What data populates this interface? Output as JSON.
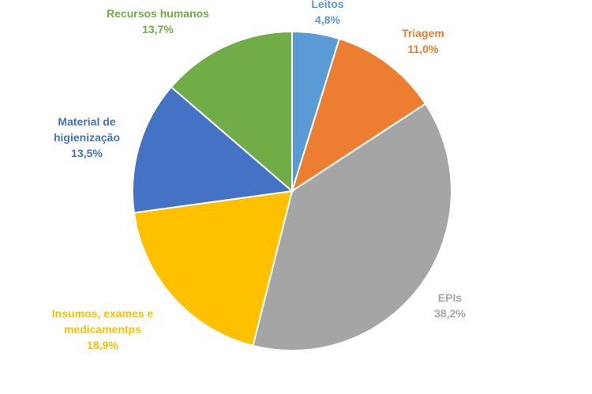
{
  "chart_data": {
    "type": "pie",
    "title": "",
    "slices": [
      {
        "label_lines": [
          "Leitos"
        ],
        "value": 4.8,
        "value_label": "4,8%",
        "color": "#5B9BD5"
      },
      {
        "label_lines": [
          "Triagem"
        ],
        "value": 11.0,
        "value_label": "11,0%",
        "color": "#ED7D31"
      },
      {
        "label_lines": [
          "EPIs"
        ],
        "value": 38.2,
        "value_label": "38,2%",
        "color": "#A5A5A5"
      },
      {
        "label_lines": [
          "Insumos, exames e",
          "medicamentps"
        ],
        "value": 18.9,
        "value_label": "18,9%",
        "color": "#FFC000"
      },
      {
        "label_lines": [
          "Material de",
          "higienização"
        ],
        "value": 13.5,
        "value_label": "13,5%",
        "color": "#4472C4"
      },
      {
        "label_lines": [
          "Recursos humanos"
        ],
        "value": 13.7,
        "value_label": "13,7%",
        "color": "#70AD47"
      }
    ],
    "legend": "none",
    "start_angle": "12 o'clock",
    "direction": "clockwise"
  }
}
